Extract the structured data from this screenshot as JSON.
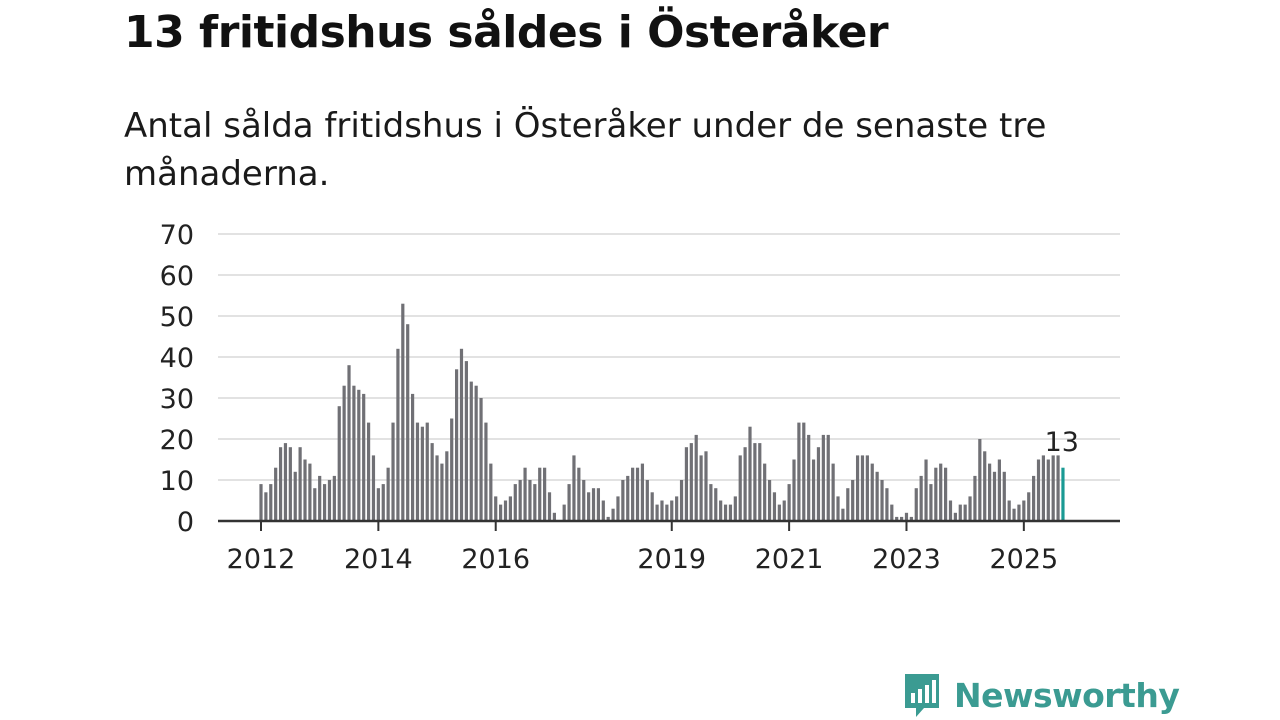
{
  "title": "13 fritidshus såldes i Österåker",
  "subtitle": "Antal sålda fritidshus i Österåker under de senaste tre månaderna.",
  "brand": {
    "name": "Newsworthy",
    "color": "#3b9b92",
    "icon": "newsworthy-bar-chart-icon"
  },
  "chart_data": {
    "type": "bar",
    "title": "13 fritidshus såldes i Österåker",
    "xlabel": "",
    "ylabel": "",
    "ylim": [
      0,
      70
    ],
    "yticks": [
      0,
      10,
      20,
      30,
      40,
      50,
      60,
      70
    ],
    "grid": true,
    "xtick_labels": [
      {
        "label": "2012",
        "index": 0
      },
      {
        "label": "2014",
        "index": 24
      },
      {
        "label": "2016",
        "index": 48
      },
      {
        "label": "2019",
        "index": 84
      },
      {
        "label": "2021",
        "index": 108
      },
      {
        "label": "2023",
        "index": 132
      },
      {
        "label": "2025",
        "index": 156
      }
    ],
    "values": [
      9,
      7,
      9,
      13,
      18,
      19,
      18,
      12,
      18,
      15,
      14,
      8,
      11,
      9,
      10,
      11,
      28,
      33,
      38,
      33,
      32,
      31,
      24,
      16,
      8,
      9,
      13,
      24,
      42,
      53,
      48,
      31,
      24,
      23,
      24,
      19,
      16,
      14,
      17,
      25,
      37,
      42,
      39,
      34,
      33,
      30,
      24,
      14,
      6,
      4,
      5,
      6,
      9,
      10,
      13,
      10,
      9,
      13,
      13,
      7,
      2,
      0,
      4,
      9,
      16,
      13,
      10,
      7,
      8,
      8,
      5,
      1,
      3,
      6,
      10,
      11,
      13,
      13,
      14,
      10,
      7,
      4,
      5,
      4,
      5,
      6,
      10,
      18,
      19,
      21,
      16,
      17,
      9,
      8,
      5,
      4,
      4,
      6,
      16,
      18,
      23,
      19,
      19,
      14,
      10,
      7,
      4,
      5,
      9,
      15,
      24,
      24,
      21,
      15,
      18,
      21,
      21,
      14,
      6,
      3,
      8,
      10,
      16,
      16,
      16,
      14,
      12,
      10,
      8,
      4,
      1,
      1,
      2,
      1,
      8,
      11,
      15,
      9,
      13,
      14,
      13,
      5,
      2,
      4,
      4,
      6,
      11,
      20,
      17,
      14,
      12,
      15,
      12,
      5,
      3,
      4,
      5,
      7,
      11,
      15,
      16,
      15,
      16,
      16,
      13
    ],
    "highlight": {
      "index": 164,
      "value": 13,
      "label": "13",
      "color": "#1a9a94"
    },
    "bar_color": "#707075"
  }
}
